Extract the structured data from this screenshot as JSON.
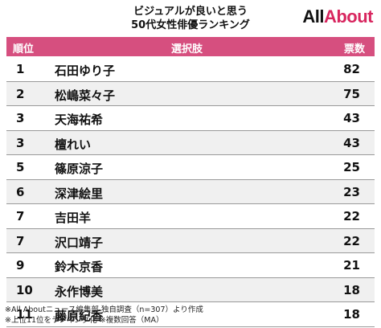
{
  "title_line1": "ビジュアルが良いと思う",
  "title_line2": "50代女性俳優ランキング",
  "logo": {
    "part1": "All",
    "part2": "About"
  },
  "colors": {
    "header_bg": "#d64f7f",
    "logo_accent": "#d8265f",
    "row_alt": "#f0f0f0"
  },
  "columns": {
    "rank": "順位",
    "name": "選択肢",
    "votes": "票数"
  },
  "rows": [
    {
      "rank": "1",
      "name": "石田ゆり子",
      "votes": "82"
    },
    {
      "rank": "2",
      "name": "松嶋菜々子",
      "votes": "75"
    },
    {
      "rank": "3",
      "name": "天海祐希",
      "votes": "43"
    },
    {
      "rank": "3",
      "name": "檀れい",
      "votes": "43"
    },
    {
      "rank": "5",
      "name": "篠原涼子",
      "votes": "25"
    },
    {
      "rank": "6",
      "name": "深津絵里",
      "votes": "23"
    },
    {
      "rank": "7",
      "name": "吉田羊",
      "votes": "22"
    },
    {
      "rank": "7",
      "name": "沢口靖子",
      "votes": "22"
    },
    {
      "rank": "9",
      "name": "鈴木京香",
      "votes": "21"
    },
    {
      "rank": "10",
      "name": "永作博美",
      "votes": "18"
    },
    {
      "rank": "11",
      "name": "藤原紀香",
      "votes": "18"
    }
  ],
  "footnote_line1": "※All Aboutニュース編集部 独自調査（n=307）より作成",
  "footnote_line2": "※上位11位をランキング化 ※複数回答（MA）"
}
